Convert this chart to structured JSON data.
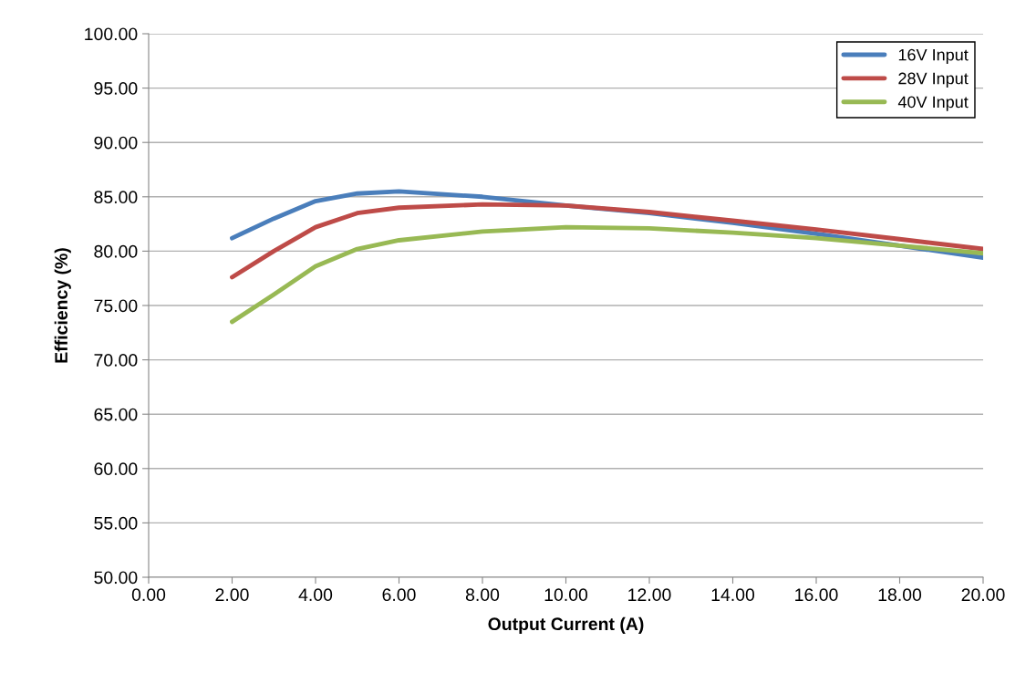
{
  "chart_data": {
    "type": "line",
    "xlabel": "Output Current (A)",
    "ylabel": "Efficiency (%)",
    "x": [
      2,
      3,
      4,
      5,
      6,
      8,
      10,
      12,
      14,
      16,
      18,
      20
    ],
    "series": [
      {
        "name": "16V Input",
        "color": "#4a7ebb",
        "values": [
          81.2,
          83.0,
          84.6,
          85.3,
          85.5,
          85.0,
          84.2,
          83.5,
          82.6,
          81.6,
          80.5,
          79.4
        ]
      },
      {
        "name": "28V Input",
        "color": "#be4b48",
        "values": [
          77.6,
          80.0,
          82.2,
          83.5,
          84.0,
          84.3,
          84.2,
          83.6,
          82.8,
          82.0,
          81.1,
          80.2
        ]
      },
      {
        "name": "40V Input",
        "color": "#98b954",
        "values": [
          73.5,
          76.0,
          78.6,
          80.2,
          81.0,
          81.8,
          82.2,
          82.1,
          81.7,
          81.2,
          80.5,
          79.8
        ]
      }
    ],
    "xlim": [
      0,
      20
    ],
    "ylim": [
      50,
      100
    ],
    "xticks": [
      {
        "value": 0,
        "label": "0.00"
      },
      {
        "value": 2,
        "label": "2.00"
      },
      {
        "value": 4,
        "label": "4.00"
      },
      {
        "value": 6,
        "label": "6.00"
      },
      {
        "value": 8,
        "label": "8.00"
      },
      {
        "value": 10,
        "label": "10.00"
      },
      {
        "value": 12,
        "label": "12.00"
      },
      {
        "value": 14,
        "label": "14.00"
      },
      {
        "value": 16,
        "label": "16.00"
      },
      {
        "value": 18,
        "label": "18.00"
      },
      {
        "value": 20,
        "label": "20.00"
      }
    ],
    "yticks": [
      {
        "value": 50,
        "label": "50.00"
      },
      {
        "value": 55,
        "label": "55.00"
      },
      {
        "value": 60,
        "label": "60.00"
      },
      {
        "value": 65,
        "label": "65.00"
      },
      {
        "value": 70,
        "label": "70.00"
      },
      {
        "value": 75,
        "label": "75.00"
      },
      {
        "value": 80,
        "label": "80.00"
      },
      {
        "value": 85,
        "label": "85.00"
      },
      {
        "value": 90,
        "label": "90.00"
      },
      {
        "value": 95,
        "label": "95.00"
      },
      {
        "value": 100,
        "label": "100.00"
      }
    ],
    "grid": "y",
    "legend": "top right",
    "marker": "none",
    "line_style": "solid"
  }
}
